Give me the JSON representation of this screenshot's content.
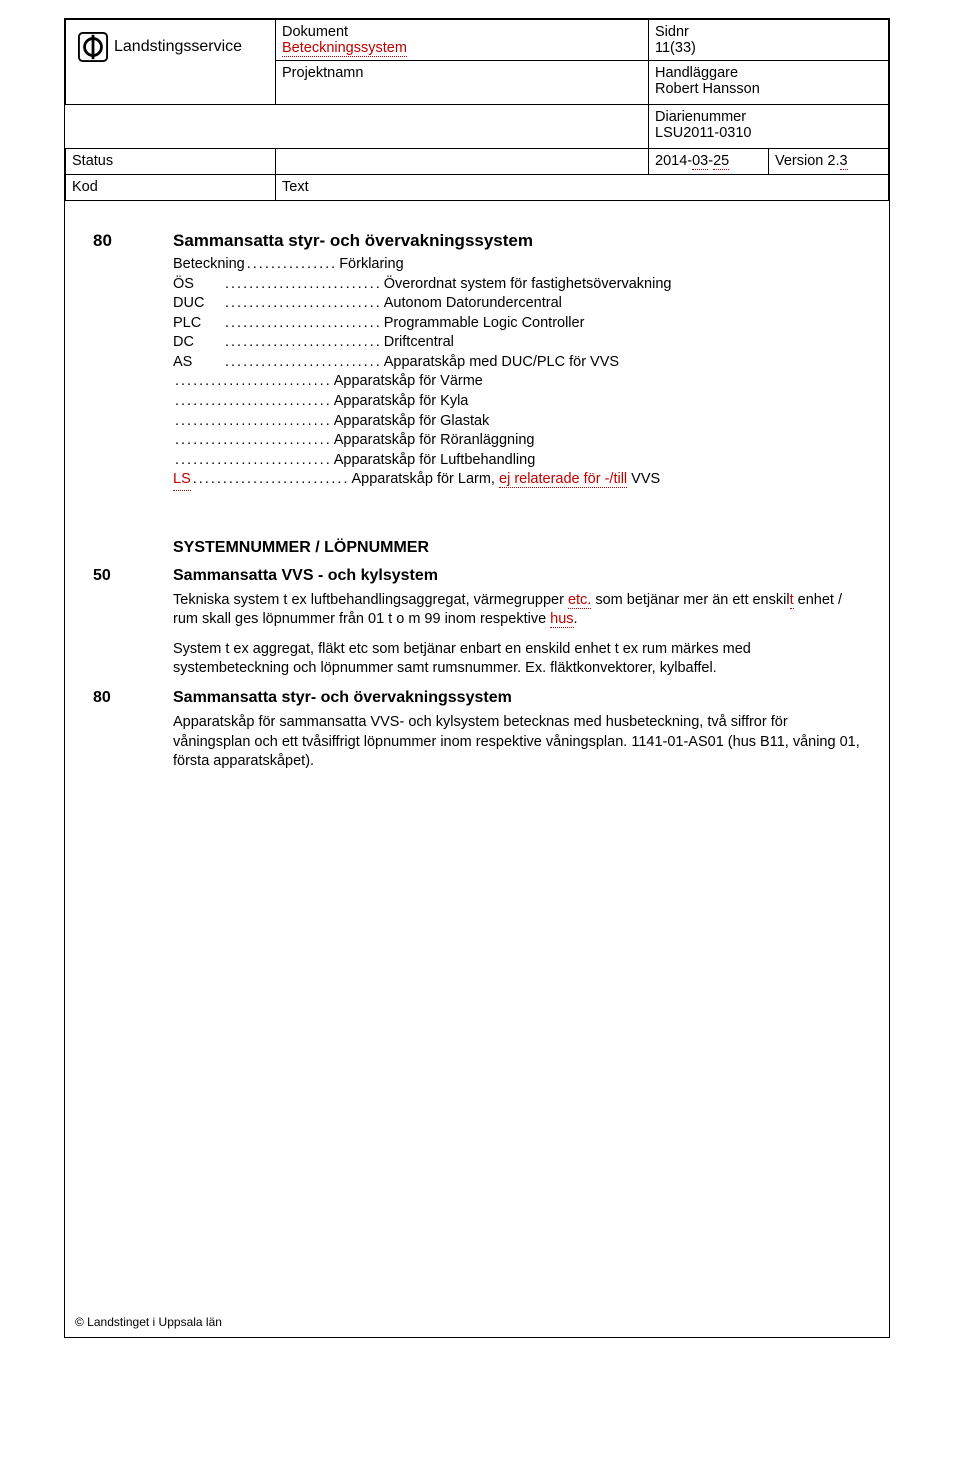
{
  "header": {
    "logo_text": "Landstingsservice",
    "dokument_label": "Dokument",
    "dokument_value": "Beteckningssystem",
    "sidnr_label": "Sidnr",
    "sidnr_value": "11(33)",
    "projektnamn_label": "Projektnamn",
    "handlaggare_label": "Handläggare",
    "handlaggare_value": "Robert Hansson",
    "diarienummer_label": "Diarienummer",
    "diarienummer_value": "LSU2011-0310",
    "status_label": "Status",
    "kod_label": "Kod",
    "text_label": "Text",
    "date": "2014-03-25",
    "date_struck_part_1": "03",
    "date_struck_part_2": "25",
    "version": "Version 2.3",
    "version_struck": "3"
  },
  "section80": {
    "num": "80",
    "title": "Sammansatta styr- och övervakningssystem",
    "legend_label": "Beteckning",
    "legend_value": "Förklaring",
    "items": [
      {
        "code": "ÖS",
        "text": "Överordnat system för fastighetsövervakning"
      },
      {
        "code": "DUC",
        "text": "Autonom Datorundercentral"
      },
      {
        "code": "PLC",
        "text": "Programmable Logic Controller"
      },
      {
        "code": "DC",
        "text": "Driftcentral"
      },
      {
        "code": "AS",
        "text": "Apparatskåp med DUC/PLC för VVS"
      },
      {
        "code": "",
        "text": "Apparatskåp för Värme"
      },
      {
        "code": "",
        "text": "Apparatskåp för Kyla"
      },
      {
        "code": "",
        "text": "Apparatskåp för Glastak"
      },
      {
        "code": "",
        "text": "Apparatskåp för Röranläggning"
      },
      {
        "code": "",
        "text": "Apparatskåp för Luftbehandling"
      }
    ],
    "ls_code": "LS",
    "ls_text_pre": "Apparatskåp för Larm, ",
    "ls_text_struck": "ej relaterade för -/till",
    "ls_text_post": "  VVS"
  },
  "systemnummer_heading": "SYSTEMNUMMER / LÖPNUMMER",
  "section50": {
    "num": "50",
    "title": "Sammansatta VVS - och kylsystem",
    "para1_a": "Tekniska system t ex luftbehandlingsaggregat, värmegrupper ",
    "para1_etc": "etc.",
    "para1_b": " som betjänar mer än ett enskil",
    "para1_t": "t",
    "para1_c": " enhet / rum skall ges löpnummer från 01 t o m 99 inom respektive ",
    "para1_hus": "hus",
    "para1_d": ".",
    "para2": "System t ex aggregat, fläkt etc som betjänar enbart en enskild enhet t ex rum märkes med systembeteckning och löpnummer samt rumsnummer. Ex. fläktkonvektorer, kylbaffel."
  },
  "section80b": {
    "num": "80",
    "title": "Sammansatta styr- och övervakningssystem",
    "para": "Apparatskåp för sammansatta VVS- och kylsystem betecknas med husbeteckning, två siffror för våningsplan och ett tvåsiffrigt löpnummer inom respektive våningsplan. 1141-01-AS01 (hus B11, våning 01, första apparatskåpet)."
  },
  "footer": "© Landstinget i Uppsala län",
  "colors": {
    "text": "#000000",
    "accent_red": "#c00000",
    "border": "#000000",
    "background": "#ffffff"
  }
}
